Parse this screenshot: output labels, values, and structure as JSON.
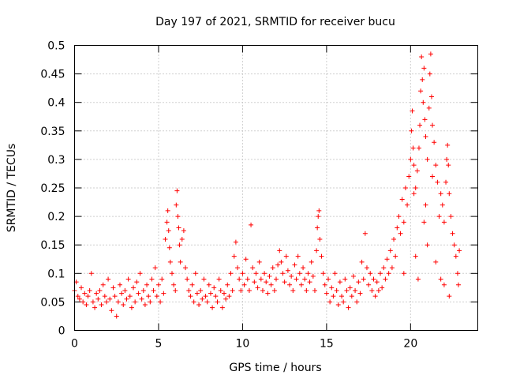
{
  "chart_data": {
    "type": "scatter",
    "title": "Day 197 of 2021, SRMTID for receiver bucu",
    "xlabel": "GPS time / hours",
    "ylabel": "SRMTID / TECUs",
    "xlim": [
      0,
      24
    ],
    "ylim": [
      0,
      0.5
    ],
    "x_ticks": [
      0,
      5,
      10,
      15,
      20
    ],
    "x_tick_labels": [
      "0",
      "5",
      "10",
      "15",
      "20"
    ],
    "y_ticks": [
      0,
      0.05,
      0.1,
      0.15,
      0.2,
      0.25,
      0.3,
      0.35,
      0.4,
      0.45,
      0.5
    ],
    "y_tick_labels": [
      "0",
      "0.05",
      "0.1",
      "0.15",
      "0.2",
      "0.25",
      "0.3",
      "0.35",
      "0.4",
      "0.45",
      "0.5"
    ],
    "grid": true,
    "marker": "+",
    "color": "#ff0000",
    "series": [
      {
        "name": "SRMTID",
        "points": [
          [
            0.0,
            0.07
          ],
          [
            0.1,
            0.085
          ],
          [
            0.2,
            0.06
          ],
          [
            0.3,
            0.055
          ],
          [
            0.4,
            0.075
          ],
          [
            0.5,
            0.05
          ],
          [
            0.6,
            0.065
          ],
          [
            0.7,
            0.045
          ],
          [
            0.8,
            0.06
          ],
          [
            0.9,
            0.07
          ],
          [
            1.0,
            0.1
          ],
          [
            1.1,
            0.05
          ],
          [
            1.2,
            0.04
          ],
          [
            1.3,
            0.065
          ],
          [
            1.4,
            0.055
          ],
          [
            1.5,
            0.07
          ],
          [
            1.6,
            0.045
          ],
          [
            1.7,
            0.08
          ],
          [
            1.8,
            0.06
          ],
          [
            1.9,
            0.05
          ],
          [
            2.0,
            0.09
          ],
          [
            2.1,
            0.055
          ],
          [
            2.2,
            0.035
          ],
          [
            2.3,
            0.075
          ],
          [
            2.4,
            0.06
          ],
          [
            2.5,
            0.025
          ],
          [
            2.6,
            0.05
          ],
          [
            2.7,
            0.08
          ],
          [
            2.8,
            0.065
          ],
          [
            2.9,
            0.045
          ],
          [
            3.0,
            0.07
          ],
          [
            3.1,
            0.055
          ],
          [
            3.2,
            0.09
          ],
          [
            3.3,
            0.06
          ],
          [
            3.4,
            0.04
          ],
          [
            3.5,
            0.075
          ],
          [
            3.6,
            0.05
          ],
          [
            3.7,
            0.085
          ],
          [
            3.8,
            0.065
          ],
          [
            3.9,
            0.1
          ],
          [
            4.0,
            0.055
          ],
          [
            4.1,
            0.07
          ],
          [
            4.2,
            0.045
          ],
          [
            4.3,
            0.08
          ],
          [
            4.4,
            0.06
          ],
          [
            4.5,
            0.05
          ],
          [
            4.6,
            0.09
          ],
          [
            4.7,
            0.07
          ],
          [
            4.8,
            0.11
          ],
          [
            4.9,
            0.06
          ],
          [
            5.0,
            0.08
          ],
          [
            5.1,
            0.05
          ],
          [
            5.2,
            0.09
          ],
          [
            5.3,
            0.065
          ],
          [
            5.4,
            0.16
          ],
          [
            5.5,
            0.19
          ],
          [
            5.55,
            0.21
          ],
          [
            5.6,
            0.175
          ],
          [
            5.65,
            0.145
          ],
          [
            5.7,
            0.12
          ],
          [
            5.8,
            0.1
          ],
          [
            5.9,
            0.08
          ],
          [
            6.0,
            0.07
          ],
          [
            6.05,
            0.22
          ],
          [
            6.1,
            0.245
          ],
          [
            6.15,
            0.2
          ],
          [
            6.2,
            0.18
          ],
          [
            6.25,
            0.15
          ],
          [
            6.3,
            0.12
          ],
          [
            6.4,
            0.16
          ],
          [
            6.5,
            0.175
          ],
          [
            6.6,
            0.11
          ],
          [
            6.7,
            0.09
          ],
          [
            6.8,
            0.07
          ],
          [
            6.9,
            0.06
          ],
          [
            7.0,
            0.08
          ],
          [
            7.1,
            0.05
          ],
          [
            7.2,
            0.1
          ],
          [
            7.3,
            0.065
          ],
          [
            7.4,
            0.045
          ],
          [
            7.5,
            0.07
          ],
          [
            7.6,
            0.055
          ],
          [
            7.7,
            0.09
          ],
          [
            7.8,
            0.06
          ],
          [
            7.9,
            0.05
          ],
          [
            8.0,
            0.08
          ],
          [
            8.1,
            0.065
          ],
          [
            8.2,
            0.04
          ],
          [
            8.3,
            0.075
          ],
          [
            8.4,
            0.06
          ],
          [
            8.5,
            0.05
          ],
          [
            8.6,
            0.09
          ],
          [
            8.7,
            0.07
          ],
          [
            8.8,
            0.04
          ],
          [
            8.9,
            0.065
          ],
          [
            9.0,
            0.055
          ],
          [
            9.1,
            0.08
          ],
          [
            9.2,
            0.06
          ],
          [
            9.3,
            0.1
          ],
          [
            9.4,
            0.07
          ],
          [
            9.5,
            0.13
          ],
          [
            9.6,
            0.155
          ],
          [
            9.7,
            0.11
          ],
          [
            9.8,
            0.09
          ],
          [
            9.9,
            0.07
          ],
          [
            10.0,
            0.1
          ],
          [
            10.1,
            0.08
          ],
          [
            10.2,
            0.125
          ],
          [
            10.3,
            0.09
          ],
          [
            10.4,
            0.07
          ],
          [
            10.5,
            0.185
          ],
          [
            10.6,
            0.11
          ],
          [
            10.7,
            0.085
          ],
          [
            10.8,
            0.1
          ],
          [
            10.9,
            0.075
          ],
          [
            11.0,
            0.12
          ],
          [
            11.1,
            0.09
          ],
          [
            11.2,
            0.07
          ],
          [
            11.3,
            0.1
          ],
          [
            11.4,
            0.085
          ],
          [
            11.5,
            0.065
          ],
          [
            11.6,
            0.095
          ],
          [
            11.7,
            0.08
          ],
          [
            11.8,
            0.11
          ],
          [
            11.9,
            0.07
          ],
          [
            12.0,
            0.09
          ],
          [
            12.1,
            0.115
          ],
          [
            12.2,
            0.14
          ],
          [
            12.3,
            0.12
          ],
          [
            12.4,
            0.1
          ],
          [
            12.5,
            0.085
          ],
          [
            12.6,
            0.13
          ],
          [
            12.7,
            0.105
          ],
          [
            12.8,
            0.08
          ],
          [
            12.9,
            0.095
          ],
          [
            13.0,
            0.07
          ],
          [
            13.1,
            0.115
          ],
          [
            13.2,
            0.09
          ],
          [
            13.3,
            0.13
          ],
          [
            13.4,
            0.1
          ],
          [
            13.5,
            0.08
          ],
          [
            13.6,
            0.11
          ],
          [
            13.7,
            0.09
          ],
          [
            13.8,
            0.07
          ],
          [
            13.9,
            0.1
          ],
          [
            14.0,
            0.085
          ],
          [
            14.1,
            0.12
          ],
          [
            14.2,
            0.095
          ],
          [
            14.3,
            0.07
          ],
          [
            14.4,
            0.14
          ],
          [
            14.45,
            0.18
          ],
          [
            14.5,
            0.2
          ],
          [
            14.55,
            0.21
          ],
          [
            14.6,
            0.16
          ],
          [
            14.7,
            0.13
          ],
          [
            14.8,
            0.1
          ],
          [
            14.9,
            0.08
          ],
          [
            15.0,
            0.065
          ],
          [
            15.1,
            0.09
          ],
          [
            15.2,
            0.05
          ],
          [
            15.3,
            0.075
          ],
          [
            15.4,
            0.06
          ],
          [
            15.5,
            0.1
          ],
          [
            15.6,
            0.07
          ],
          [
            15.7,
            0.045
          ],
          [
            15.8,
            0.085
          ],
          [
            15.9,
            0.06
          ],
          [
            16.0,
            0.05
          ],
          [
            16.1,
            0.09
          ],
          [
            16.2,
            0.07
          ],
          [
            16.3,
            0.04
          ],
          [
            16.4,
            0.075
          ],
          [
            16.5,
            0.06
          ],
          [
            16.6,
            0.095
          ],
          [
            16.7,
            0.07
          ],
          [
            16.8,
            0.05
          ],
          [
            16.9,
            0.085
          ],
          [
            17.0,
            0.065
          ],
          [
            17.1,
            0.12
          ],
          [
            17.2,
            0.09
          ],
          [
            17.3,
            0.17
          ],
          [
            17.4,
            0.11
          ],
          [
            17.5,
            0.08
          ],
          [
            17.6,
            0.1
          ],
          [
            17.7,
            0.07
          ],
          [
            17.8,
            0.09
          ],
          [
            17.9,
            0.06
          ],
          [
            18.0,
            0.085
          ],
          [
            18.1,
            0.07
          ],
          [
            18.2,
            0.1
          ],
          [
            18.3,
            0.075
          ],
          [
            18.4,
            0.11
          ],
          [
            18.5,
            0.09
          ],
          [
            18.6,
            0.125
          ],
          [
            18.7,
            0.1
          ],
          [
            18.8,
            0.14
          ],
          [
            18.9,
            0.11
          ],
          [
            19.0,
            0.16
          ],
          [
            19.1,
            0.13
          ],
          [
            19.2,
            0.18
          ],
          [
            19.3,
            0.2
          ],
          [
            19.4,
            0.17
          ],
          [
            19.5,
            0.23
          ],
          [
            19.6,
            0.19
          ],
          [
            19.7,
            0.25
          ],
          [
            19.8,
            0.22
          ],
          [
            19.9,
            0.27
          ],
          [
            20.0,
            0.3
          ],
          [
            20.05,
            0.35
          ],
          [
            20.1,
            0.385
          ],
          [
            20.15,
            0.32
          ],
          [
            20.2,
            0.29
          ],
          [
            20.3,
            0.25
          ],
          [
            20.4,
            0.28
          ],
          [
            20.45,
            0.09
          ],
          [
            20.5,
            0.32
          ],
          [
            20.55,
            0.36
          ],
          [
            20.6,
            0.42
          ],
          [
            20.65,
            0.48
          ],
          [
            20.7,
            0.44
          ],
          [
            20.75,
            0.4
          ],
          [
            20.8,
            0.46
          ],
          [
            20.85,
            0.37
          ],
          [
            20.9,
            0.34
          ],
          [
            21.0,
            0.3
          ],
          [
            21.1,
            0.39
          ],
          [
            21.15,
            0.45
          ],
          [
            21.2,
            0.485
          ],
          [
            21.25,
            0.41
          ],
          [
            21.3,
            0.36
          ],
          [
            21.4,
            0.33
          ],
          [
            21.5,
            0.29
          ],
          [
            21.6,
            0.26
          ],
          [
            21.7,
            0.2
          ],
          [
            21.8,
            0.24
          ],
          [
            21.9,
            0.22
          ],
          [
            22.0,
            0.19
          ],
          [
            22.1,
            0.26
          ],
          [
            22.15,
            0.3
          ],
          [
            22.2,
            0.325
          ],
          [
            22.25,
            0.29
          ],
          [
            22.3,
            0.24
          ],
          [
            22.4,
            0.2
          ],
          [
            22.5,
            0.17
          ],
          [
            22.6,
            0.15
          ],
          [
            22.7,
            0.13
          ],
          [
            22.8,
            0.1
          ],
          [
            22.85,
            0.08
          ],
          [
            22.9,
            0.14
          ],
          [
            22.3,
            0.06
          ],
          [
            21.8,
            0.09
          ],
          [
            21.0,
            0.15
          ],
          [
            20.8,
            0.19
          ],
          [
            20.3,
            0.13
          ],
          [
            19.6,
            0.1
          ],
          [
            21.5,
            0.12
          ],
          [
            22.0,
            0.08
          ],
          [
            20.9,
            0.22
          ],
          [
            21.3,
            0.27
          ],
          [
            20.2,
            0.24
          ]
        ]
      }
    ]
  }
}
